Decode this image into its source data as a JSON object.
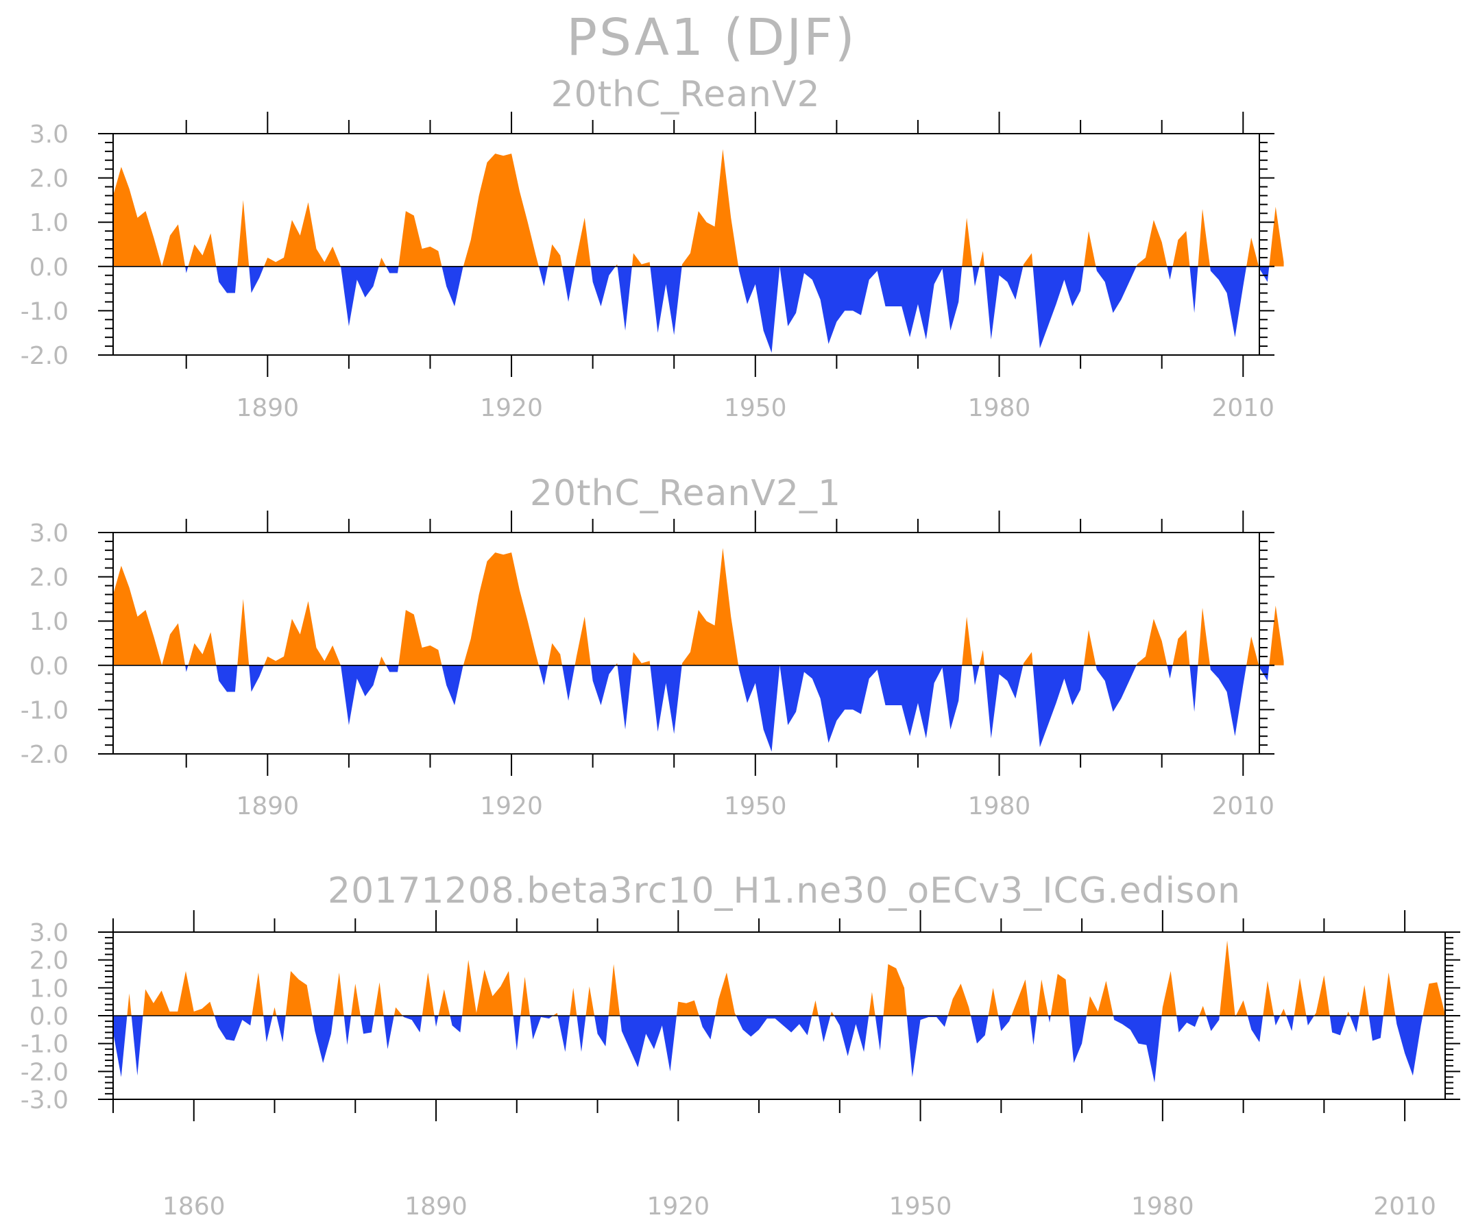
{
  "title": "PSA1 (DJF)",
  "colors": {
    "positive": "#ff8000",
    "negative": "#2040f0",
    "text": "#b9b9b9",
    "axis": "#000000"
  },
  "chart_data": [
    {
      "type": "area",
      "title": "20thC_ReanV2",
      "xlim": [
        1871,
        2012
      ],
      "ylim": [
        -2,
        3
      ],
      "yticks": [
        3.0,
        2.0,
        1.0,
        0.0,
        -1.0,
        -2.0
      ],
      "ytick_labels": [
        "3.0",
        "2.0",
        "1.0",
        "0.0",
        "-1.0",
        "-2.0"
      ],
      "xticks": [
        1890,
        1920,
        1950,
        1980,
        2010
      ],
      "xtick_labels": [
        "1890",
        "1920",
        "1950",
        "1980",
        "2010"
      ],
      "x_start": 1871,
      "values": [
        1.6,
        2.25,
        1.75,
        1.1,
        1.25,
        0.65,
        0.0,
        0.7,
        0.95,
        -0.15,
        0.5,
        0.25,
        0.75,
        -0.35,
        -0.6,
        -0.6,
        1.5,
        -0.6,
        -0.25,
        0.2,
        0.1,
        0.2,
        1.05,
        0.7,
        1.45,
        0.4,
        0.1,
        0.45,
        0.0,
        -1.35,
        -0.3,
        -0.7,
        -0.45,
        0.2,
        -0.15,
        -0.15,
        1.25,
        1.15,
        0.4,
        0.45,
        0.35,
        -0.45,
        -0.9,
        -0.05,
        0.6,
        1.6,
        2.35,
        2.55,
        2.5,
        2.55,
        1.7,
        1.0,
        0.25,
        -0.45,
        0.5,
        0.25,
        -0.8,
        0.2,
        1.1,
        -0.35,
        -0.9,
        -0.2,
        0.05,
        -1.45,
        0.3,
        0.05,
        0.1,
        -1.5,
        -0.4,
        -1.55,
        0.05,
        0.3,
        1.25,
        1.0,
        0.9,
        2.65,
        1.1,
        -0.1,
        -0.85,
        -0.4,
        -1.45,
        -1.95,
        0.0,
        -1.35,
        -1.05,
        -0.15,
        -0.3,
        -0.75,
        -1.75,
        -1.25,
        -1.0,
        -1.0,
        -1.1,
        -0.3,
        -0.1,
        -0.9,
        -0.9,
        -0.9,
        -1.6,
        -0.85,
        -1.65,
        -0.4,
        -0.05,
        -1.45,
        -0.8,
        1.1,
        -0.45,
        0.35,
        -1.65,
        -0.2,
        -0.35,
        -0.75,
        0.05,
        0.3,
        -1.85,
        -1.35,
        -0.85,
        -0.3,
        -0.9,
        -0.55,
        0.8,
        -0.1,
        -0.35,
        -1.05,
        -0.75,
        -0.35,
        0.05,
        0.2,
        1.05,
        0.55,
        -0.3,
        0.6,
        0.8,
        -1.05,
        1.3,
        -0.1,
        -0.3,
        -0.6,
        -1.6,
        -0.45,
        0.65,
        -0.05,
        -0.35,
        1.35,
        0.1
      ]
    },
    {
      "type": "area",
      "title": "20thC_ReanV2_1",
      "xlim": [
        1871,
        2012
      ],
      "ylim": [
        -2,
        3
      ],
      "yticks": [
        3.0,
        2.0,
        1.0,
        0.0,
        -1.0,
        -2.0
      ],
      "ytick_labels": [
        "3.0",
        "2.0",
        "1.0",
        "0.0",
        "-1.0",
        "-2.0"
      ],
      "xticks": [
        1890,
        1920,
        1950,
        1980,
        2010
      ],
      "xtick_labels": [
        "1890",
        "1920",
        "1950",
        "1980",
        "2010"
      ],
      "x_start": 1871,
      "values": [
        1.6,
        2.25,
        1.75,
        1.1,
        1.25,
        0.65,
        0.0,
        0.7,
        0.95,
        -0.15,
        0.5,
        0.25,
        0.75,
        -0.35,
        -0.6,
        -0.6,
        1.5,
        -0.6,
        -0.25,
        0.2,
        0.1,
        0.2,
        1.05,
        0.7,
        1.45,
        0.4,
        0.1,
        0.45,
        0.0,
        -1.35,
        -0.3,
        -0.7,
        -0.45,
        0.2,
        -0.15,
        -0.15,
        1.25,
        1.15,
        0.4,
        0.45,
        0.35,
        -0.45,
        -0.9,
        -0.05,
        0.6,
        1.6,
        2.35,
        2.55,
        2.5,
        2.55,
        1.7,
        1.0,
        0.25,
        -0.45,
        0.5,
        0.25,
        -0.8,
        0.2,
        1.1,
        -0.35,
        -0.9,
        -0.2,
        0.05,
        -1.45,
        0.3,
        0.05,
        0.1,
        -1.5,
        -0.4,
        -1.55,
        0.05,
        0.3,
        1.25,
        1.0,
        0.9,
        2.65,
        1.1,
        -0.1,
        -0.85,
        -0.4,
        -1.45,
        -1.95,
        0.0,
        -1.35,
        -1.05,
        -0.15,
        -0.3,
        -0.75,
        -1.75,
        -1.25,
        -1.0,
        -1.0,
        -1.1,
        -0.3,
        -0.1,
        -0.9,
        -0.9,
        -0.9,
        -1.6,
        -0.85,
        -1.65,
        -0.4,
        -0.05,
        -1.45,
        -0.8,
        1.1,
        -0.45,
        0.35,
        -1.65,
        -0.2,
        -0.35,
        -0.75,
        0.05,
        0.3,
        -1.85,
        -1.35,
        -0.85,
        -0.3,
        -0.9,
        -0.55,
        0.8,
        -0.1,
        -0.35,
        -1.05,
        -0.75,
        -0.35,
        0.05,
        0.2,
        1.05,
        0.55,
        -0.3,
        0.6,
        0.8,
        -1.05,
        1.3,
        -0.1,
        -0.3,
        -0.6,
        -1.6,
        -0.45,
        0.65,
        -0.05,
        -0.35,
        1.35,
        0.1
      ]
    },
    {
      "type": "area",
      "title": "20171208.beta3rc10_H1.ne30_oECv3_ICG.edison",
      "xlim": [
        1850,
        2015
      ],
      "ylim": [
        -3,
        3
      ],
      "yticks": [
        3.0,
        2.0,
        1.0,
        0.0,
        -1.0,
        -2.0,
        -3.0
      ],
      "ytick_labels": [
        "3.0",
        "2.0",
        "1.0",
        "0.0",
        "-1.0",
        "-2.0",
        "-3.0"
      ],
      "xticks": [
        1860,
        1890,
        1920,
        1950,
        1980,
        2010
      ],
      "xtick_labels": [
        "1860",
        "1890",
        "1920",
        "1950",
        "1980",
        "2010"
      ],
      "x_start": 1850,
      "values": [
        -0.6,
        -2.2,
        0.8,
        -2.15,
        0.95,
        0.45,
        0.9,
        0.15,
        0.15,
        1.6,
        0.15,
        0.25,
        0.5,
        -0.4,
        -0.85,
        -0.9,
        -0.15,
        -0.35,
        1.55,
        -0.95,
        0.3,
        -0.95,
        1.6,
        1.3,
        1.1,
        -0.55,
        -1.7,
        -0.65,
        1.55,
        -1.05,
        1.15,
        -0.65,
        -0.6,
        1.2,
        -1.2,
        0.3,
        -0.05,
        -0.15,
        -0.6,
        1.55,
        -0.4,
        0.95,
        -0.35,
        -0.6,
        2.0,
        0.1,
        1.65,
        0.7,
        1.05,
        1.6,
        -1.25,
        1.4,
        -0.85,
        -0.05,
        -0.1,
        0.1,
        -1.3,
        1.0,
        -1.3,
        1.05,
        -0.65,
        -1.1,
        1.85,
        -0.55,
        -1.2,
        -1.85,
        -0.65,
        -1.2,
        -0.35,
        -2.0,
        0.5,
        0.45,
        0.55,
        -0.4,
        -0.85,
        0.6,
        1.55,
        0.1,
        -0.5,
        -0.75,
        -0.5,
        -0.1,
        -0.1,
        -0.35,
        -0.6,
        -0.3,
        -0.7,
        0.55,
        -0.95,
        0.15,
        -0.35,
        -1.45,
        -0.3,
        -1.3,
        0.85,
        -1.25,
        1.85,
        1.7,
        1.0,
        -2.2,
        -0.15,
        -0.05,
        -0.05,
        -0.4,
        0.6,
        1.15,
        0.3,
        -1.0,
        -0.7,
        1.0,
        -0.55,
        -0.2,
        0.55,
        1.3,
        -1.05,
        1.3,
        -0.25,
        1.5,
        1.3,
        -1.7,
        -1.0,
        0.7,
        0.15,
        1.25,
        -0.15,
        -0.3,
        -0.5,
        -1.0,
        -1.05,
        -2.4,
        0.3,
        1.6,
        -0.6,
        -0.25,
        -0.4,
        0.35,
        -0.55,
        -0.15,
        2.7,
        -0.05,
        0.55,
        -0.5,
        -0.95,
        1.25,
        -0.35,
        0.25,
        -0.55,
        1.35,
        -0.35,
        0.1,
        1.45,
        -0.6,
        -0.7,
        0.15,
        -0.6,
        1.1,
        -0.9,
        -0.8,
        1.55,
        -0.3,
        -1.35,
        -2.15,
        -0.35,
        1.15,
        1.2,
        0.05
      ]
    }
  ]
}
